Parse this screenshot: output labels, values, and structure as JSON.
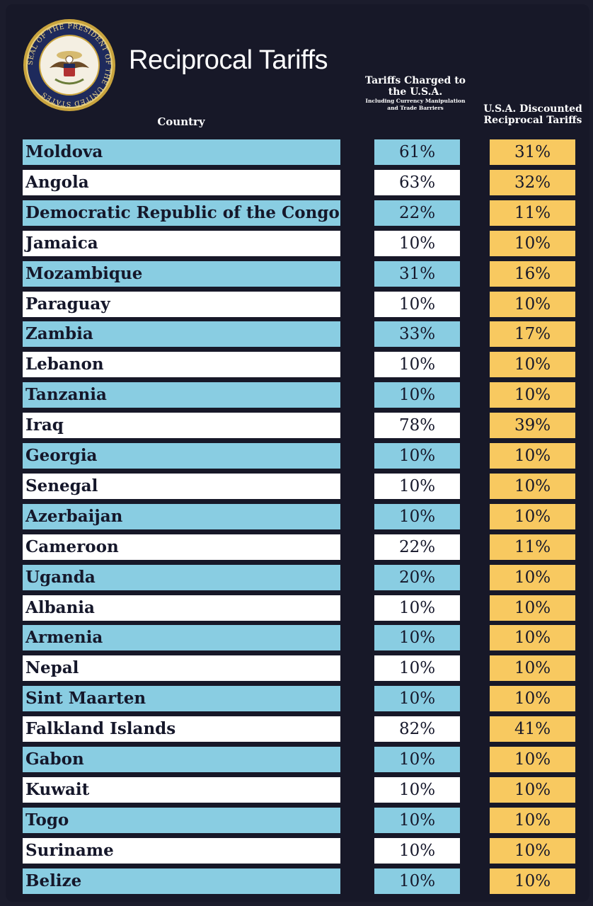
{
  "title": "Reciprocal Tariffs",
  "seal": {
    "icon": "presidential-seal-icon",
    "text": "SEAL OF THE PRESIDENT OF THE UNITED STATES"
  },
  "headers": {
    "country": "Country",
    "charged_main": "Tariffs Charged to the U.S.A.",
    "charged_sub": "Including Currency Manipulation and Trade Barriers",
    "discounted": "U.S.A. Discounted Reciprocal Tariffs"
  },
  "colors": {
    "background": "#171828",
    "blue_row": "#89cde2",
    "white_row": "#ffffff",
    "gold": "#f8c960",
    "text": "#15172a"
  },
  "rows": [
    {
      "country": "Moldova",
      "charged": "61%",
      "discounted": "31%"
    },
    {
      "country": "Angola",
      "charged": "63%",
      "discounted": "32%"
    },
    {
      "country": "Democratic Republic of the Congo",
      "charged": "22%",
      "discounted": "11%"
    },
    {
      "country": "Jamaica",
      "charged": "10%",
      "discounted": "10%"
    },
    {
      "country": "Mozambique",
      "charged": "31%",
      "discounted": "16%"
    },
    {
      "country": "Paraguay",
      "charged": "10%",
      "discounted": "10%"
    },
    {
      "country": "Zambia",
      "charged": "33%",
      "discounted": "17%"
    },
    {
      "country": "Lebanon",
      "charged": "10%",
      "discounted": "10%"
    },
    {
      "country": "Tanzania",
      "charged": "10%",
      "discounted": "10%"
    },
    {
      "country": "Iraq",
      "charged": "78%",
      "discounted": "39%"
    },
    {
      "country": "Georgia",
      "charged": "10%",
      "discounted": "10%"
    },
    {
      "country": "Senegal",
      "charged": "10%",
      "discounted": "10%"
    },
    {
      "country": "Azerbaijan",
      "charged": "10%",
      "discounted": "10%"
    },
    {
      "country": "Cameroon",
      "charged": "22%",
      "discounted": "11%"
    },
    {
      "country": "Uganda",
      "charged": "20%",
      "discounted": "10%"
    },
    {
      "country": "Albania",
      "charged": "10%",
      "discounted": "10%"
    },
    {
      "country": "Armenia",
      "charged": "10%",
      "discounted": "10%"
    },
    {
      "country": "Nepal",
      "charged": "10%",
      "discounted": "10%"
    },
    {
      "country": "Sint Maarten",
      "charged": "10%",
      "discounted": "10%"
    },
    {
      "country": "Falkland Islands",
      "charged": "82%",
      "discounted": "41%"
    },
    {
      "country": "Gabon",
      "charged": "10%",
      "discounted": "10%"
    },
    {
      "country": "Kuwait",
      "charged": "10%",
      "discounted": "10%"
    },
    {
      "country": "Togo",
      "charged": "10%",
      "discounted": "10%"
    },
    {
      "country": "Suriname",
      "charged": "10%",
      "discounted": "10%"
    },
    {
      "country": "Belize",
      "charged": "10%",
      "discounted": "10%"
    }
  ]
}
